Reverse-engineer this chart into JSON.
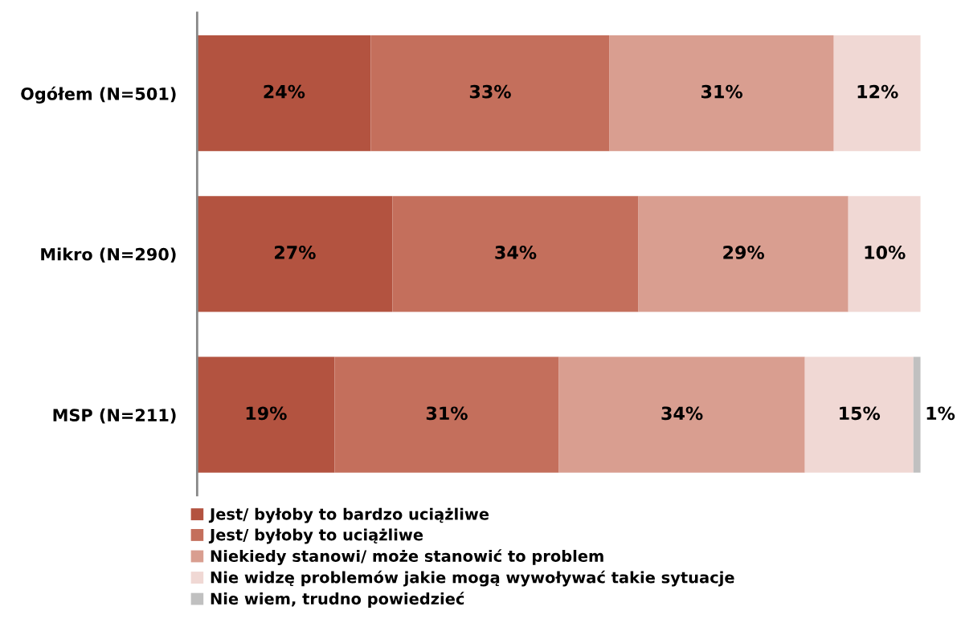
{
  "chart_data": {
    "type": "bar",
    "orientation": "horizontal",
    "stacked": true,
    "legend": "bottom",
    "grid": false,
    "categories": [
      "Ogółem (N=501)",
      "Mikro (N=290)",
      "MSP (N=211)"
    ],
    "series": [
      {
        "name": "Jest/ byłoby to bardzo uciążliwe",
        "color": "#b35340",
        "values": [
          24,
          27,
          19
        ],
        "value_labels": [
          "24%",
          "27%",
          "19%"
        ]
      },
      {
        "name": "Jest/ byłoby to uciążliwe",
        "color": "#c46f5c",
        "values": [
          33,
          34,
          31
        ],
        "value_labels": [
          "33%",
          "34%",
          "31%"
        ]
      },
      {
        "name": "Niekiedy stanowi/ może stanowić to problem",
        "color": "#d99e90",
        "values": [
          31,
          29,
          34
        ],
        "value_labels": [
          "31%",
          "29%",
          "34%"
        ]
      },
      {
        "name": "Nie widzę problemów jakie mogą wywoływać takie sytuacje",
        "color": "#f0d8d4",
        "values": [
          12,
          10,
          15
        ],
        "value_labels": [
          "12%",
          "10%",
          "15%"
        ]
      },
      {
        "name": "Nie wiem, trudno powiedzieć",
        "color": "#c0c0c0",
        "values": [
          null,
          null,
          1
        ],
        "value_labels": [
          null,
          null,
          "1%"
        ]
      }
    ]
  }
}
